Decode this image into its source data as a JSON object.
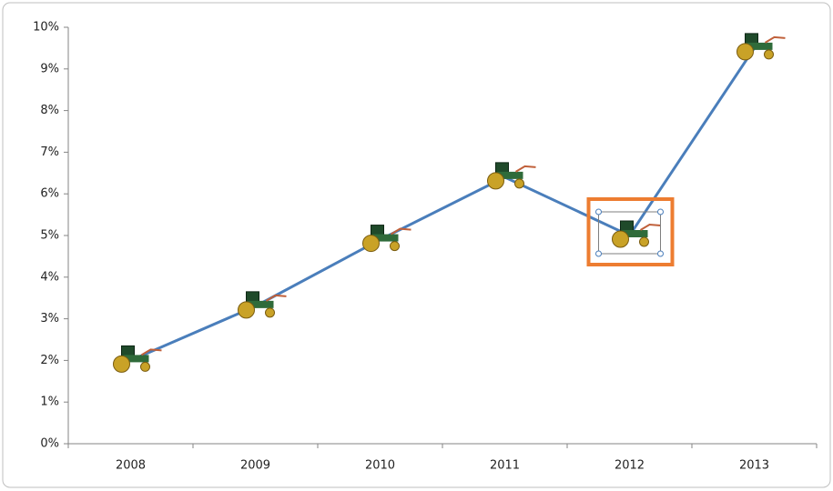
{
  "chart_data": {
    "type": "line",
    "categories": [
      "2008",
      "2009",
      "2010",
      "2011",
      "2012",
      "2013"
    ],
    "series": [
      {
        "color": "#4a7ebb",
        "values": [
          2,
          3.3,
          4.9,
          6.4,
          5,
          9.5
        ]
      }
    ],
    "ylim": [
      0,
      10
    ],
    "yticks": [
      {
        "value": 0,
        "label": "0%"
      },
      {
        "value": 1,
        "label": "1%"
      },
      {
        "value": 2,
        "label": "2%"
      },
      {
        "value": 3,
        "label": "3%"
      },
      {
        "value": 4,
        "label": "4%"
      },
      {
        "value": 5,
        "label": "5%"
      },
      {
        "value": 6,
        "label": "6%"
      },
      {
        "value": 7,
        "label": "7%"
      },
      {
        "value": 8,
        "label": "8%"
      },
      {
        "value": 9,
        "label": "9%"
      },
      {
        "value": 10,
        "label": "10%"
      }
    ],
    "grid": false
  }
}
